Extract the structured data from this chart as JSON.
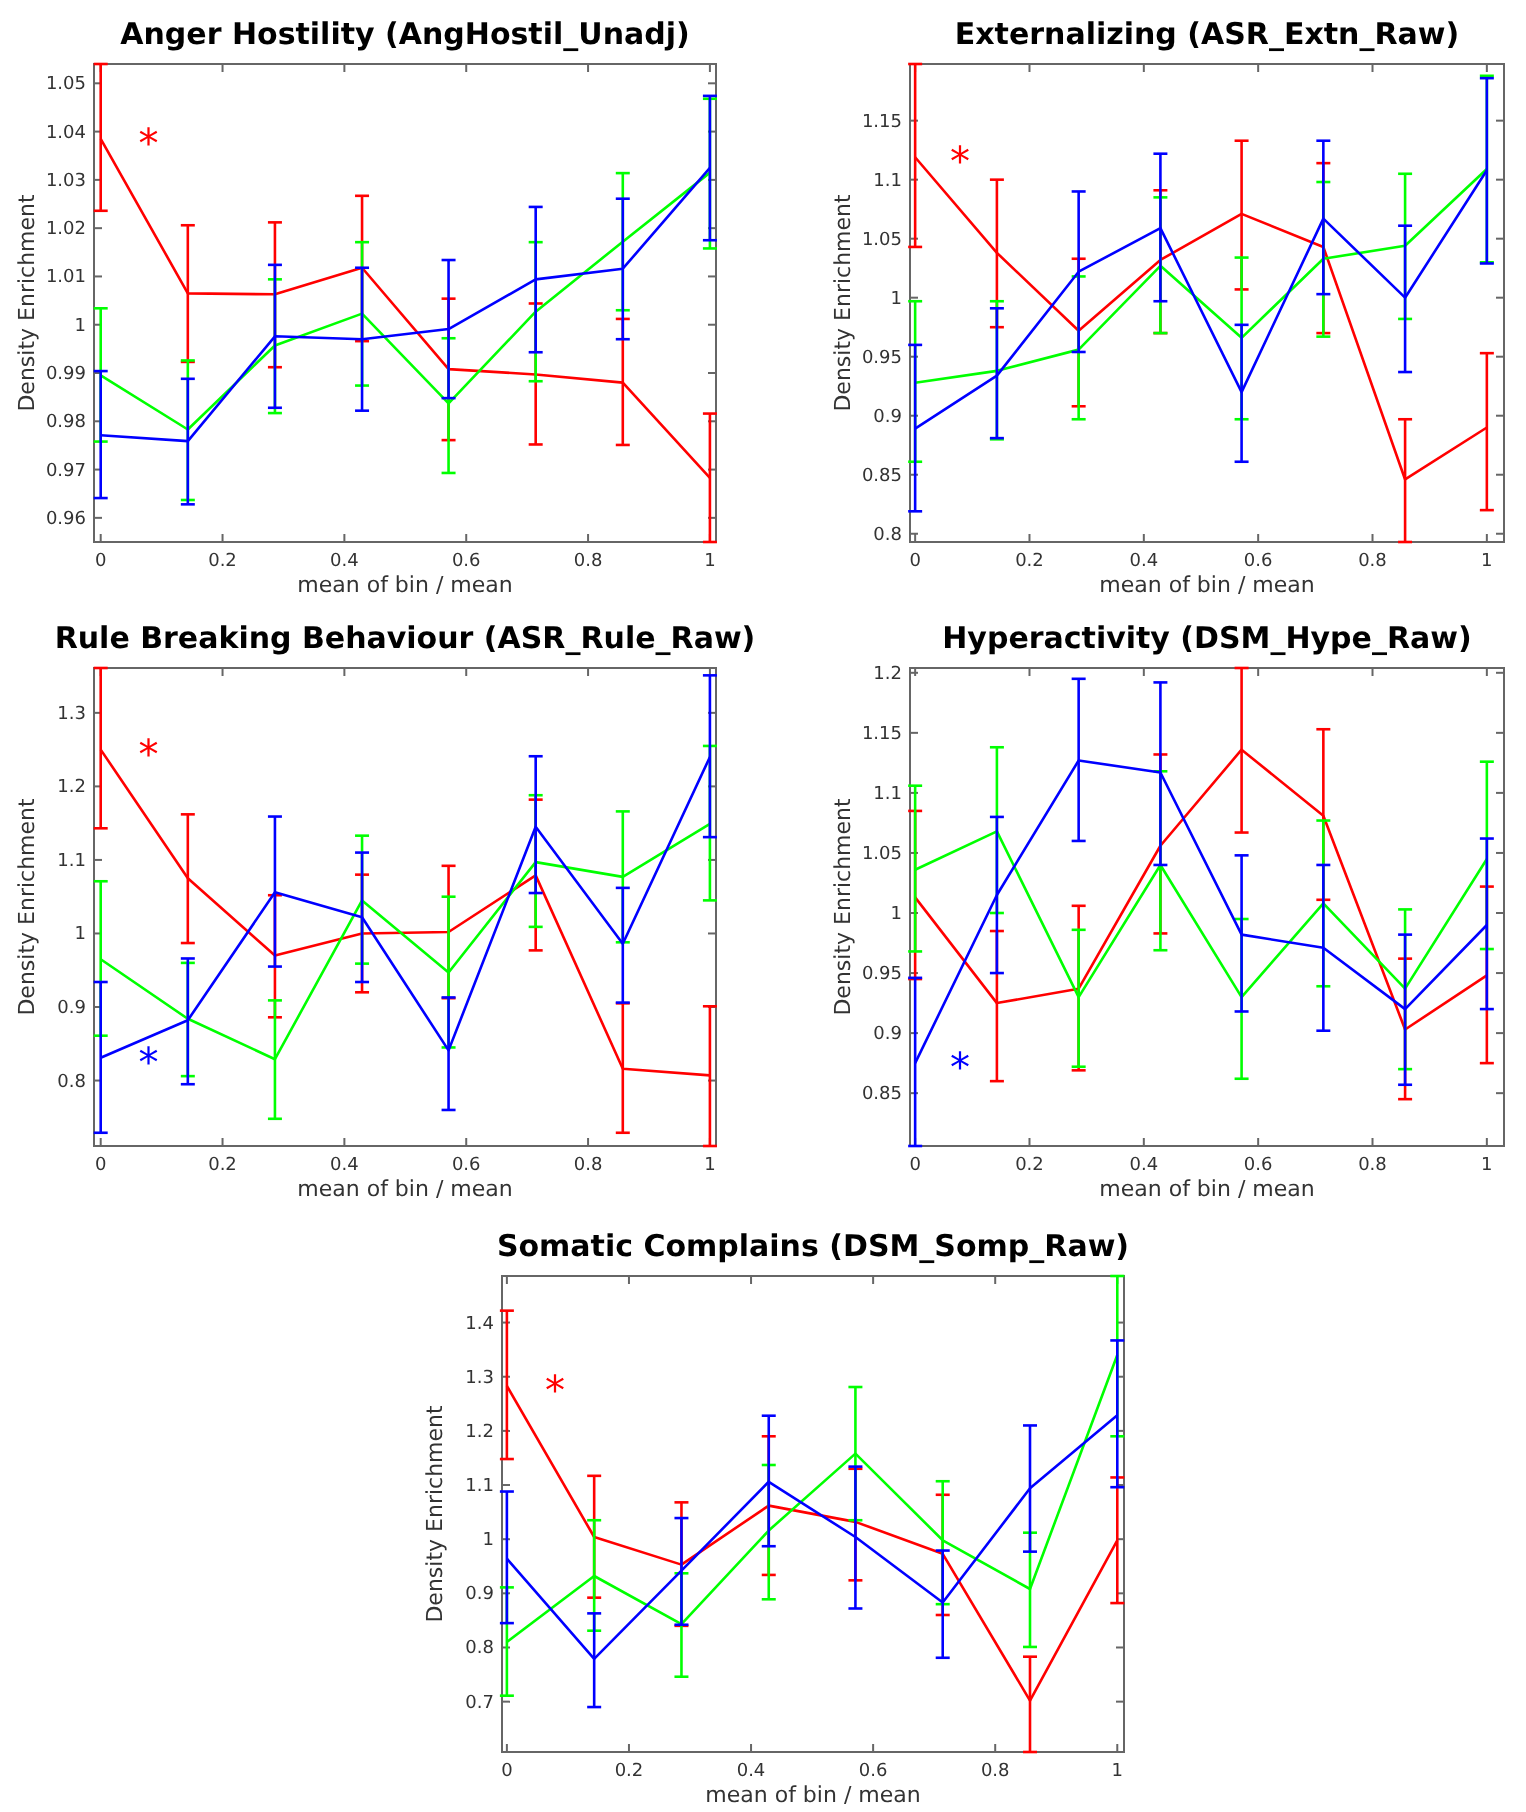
{
  "chart_data": [
    {
      "type": "line",
      "title": "Anger Hostility (AngHostil_Unadj)",
      "xlabel": "mean of bin / mean",
      "ylabel": "Density Enrichment",
      "x": [
        0,
        0.143,
        0.286,
        0.429,
        0.571,
        0.714,
        0.857,
        1
      ],
      "xlim": [
        -0.011,
        1.01
      ],
      "xticks": [
        0,
        0.2,
        0.4,
        0.6,
        0.8,
        1
      ],
      "ylim": [
        0.955,
        1.054
      ],
      "yticks": [
        0.96,
        0.97,
        0.98,
        0.99,
        1,
        1.01,
        1.02,
        1.03,
        1.04,
        1.05
      ],
      "annotations": [
        "*"
      ],
      "series": [
        {
          "color": "#ff0000",
          "values": [
            1.0385,
            1.0065,
            1.0063,
            1.0118,
            0.9908,
            0.9897,
            0.988,
            0.9683
          ],
          "errors": [
            [
              1.0236,
              1.054
            ],
            [
              0.9923,
              1.0206
            ],
            [
              0.9912,
              1.0212
            ],
            [
              0.9966,
              1.0267
            ],
            [
              0.9761,
              1.0054
            ],
            [
              0.9752,
              1.0044
            ],
            [
              0.9751,
              1.0012
            ],
            [
              0.955,
              0.9816
            ]
          ]
        },
        {
          "color": "#00ff00",
          "values": [
            0.9895,
            0.9783,
            0.9957,
            1.0023,
            0.9837,
            1.0027,
            1.0172,
            1.0315
          ],
          "errors": [
            [
              0.9758,
              1.0034
            ],
            [
              0.9637,
              0.9926
            ],
            [
              0.9817,
              1.0094
            ],
            [
              0.9874,
              1.0171
            ],
            [
              0.9693,
              0.9972
            ],
            [
              0.9883,
              1.0171
            ],
            [
              1.003,
              1.0314
            ],
            [
              1.0158,
              1.0468
            ]
          ]
        },
        {
          "color": "#0000ff",
          "values": [
            0.9771,
            0.9759,
            0.9976,
            0.997,
            0.9991,
            1.0094,
            1.0116,
            1.0325
          ],
          "errors": [
            [
              0.9641,
              0.9904
            ],
            [
              0.9628,
              0.9888
            ],
            [
              0.9828,
              1.0124
            ],
            [
              0.9822,
              1.0118
            ],
            [
              0.9848,
              1.0134
            ],
            [
              0.9943,
              1.0244
            ],
            [
              0.997,
              1.0261
            ],
            [
              1.0175,
              1.0474
            ]
          ]
        }
      ]
    },
    {
      "type": "line",
      "title": "Externalizing (ASR_Extn_Raw)",
      "xlabel": "mean of bin / mean",
      "ylabel": "Density Enrichment",
      "x": [
        0,
        0.143,
        0.286,
        0.429,
        0.571,
        0.714,
        0.857,
        1
      ],
      "xlim": [
        -0.009,
        1.03
      ],
      "xticks": [
        0,
        0.2,
        0.4,
        0.6,
        0.8,
        1
      ],
      "ylim": [
        0.793,
        1.198
      ],
      "yticks": [
        0.8,
        0.85,
        0.9,
        0.95,
        1,
        1.05,
        1.1,
        1.15
      ],
      "annotations": [
        "*"
      ],
      "series": [
        {
          "color": "#ff0000",
          "values": [
            1.119,
            1.038,
            0.972,
            1.032,
            1.071,
            1.043,
            0.846,
            0.89
          ],
          "errors": [
            [
              1.043,
              1.198
            ],
            [
              0.975,
              1.1
            ],
            [
              0.908,
              1.033
            ],
            [
              0.97,
              1.091
            ],
            [
              1.007,
              1.133
            ],
            [
              0.97,
              1.114
            ],
            [
              0.793,
              0.897
            ],
            [
              0.82,
              0.953
            ]
          ]
        },
        {
          "color": "#00ff00",
          "values": [
            0.928,
            0.938,
            0.956,
            1.027,
            0.966,
            1.033,
            1.044,
            1.109
          ],
          "errors": [
            [
              0.861,
              0.997
            ],
            [
              0.88,
              0.997
            ],
            [
              0.897,
              1.018
            ],
            [
              0.97,
              1.085
            ],
            [
              0.897,
              1.034
            ],
            [
              0.967,
              1.098
            ],
            [
              0.982,
              1.105
            ],
            [
              1.03,
              1.188
            ]
          ]
        },
        {
          "color": "#0000ff",
          "values": [
            0.889,
            0.934,
            1.022,
            1.059,
            0.92,
            1.067,
            1.0,
            1.108
          ],
          "errors": [
            [
              0.819,
              0.96
            ],
            [
              0.881,
              0.991
            ],
            [
              0.954,
              1.09
            ],
            [
              0.997,
              1.122
            ],
            [
              0.861,
              0.977
            ],
            [
              1.003,
              1.133
            ],
            [
              0.937,
              1.061
            ],
            [
              1.029,
              1.186
            ]
          ]
        }
      ]
    },
    {
      "type": "line",
      "title": "Rule Breaking Behaviour (ASR_Rule_Raw)",
      "xlabel": "mean of bin / mean",
      "ylabel": "Density Enrichment",
      "x": [
        0,
        0.143,
        0.286,
        0.429,
        0.571,
        0.714,
        0.857,
        1
      ],
      "xlim": [
        -0.011,
        1.01
      ],
      "xticks": [
        0,
        0.2,
        0.4,
        0.6,
        0.8,
        1
      ],
      "ylim": [
        0.711,
        1.361
      ],
      "yticks": [
        0.8,
        0.9,
        1,
        1.1,
        1.2,
        1.3
      ],
      "annotations": [
        "*",
        "*"
      ],
      "series": [
        {
          "color": "#ff0000",
          "values": [
            1.25,
            1.075,
            0.97,
            1.0,
            1.002,
            1.079,
            0.816,
            0.807
          ],
          "errors": [
            [
              1.143,
              1.361
            ],
            [
              0.987,
              1.162
            ],
            [
              0.886,
              1.052
            ],
            [
              0.92,
              1.08
            ],
            [
              0.912,
              1.092
            ],
            [
              0.977,
              1.182
            ],
            [
              0.729,
              0.905
            ],
            [
              0.711,
              0.901
            ]
          ]
        },
        {
          "color": "#00ff00",
          "values": [
            0.965,
            0.884,
            0.829,
            1.045,
            0.947,
            1.097,
            1.077,
            1.149
          ],
          "errors": [
            [
              0.861,
              1.071
            ],
            [
              0.806,
              0.96
            ],
            [
              0.748,
              0.909
            ],
            [
              0.959,
              1.133
            ],
            [
              0.845,
              1.05
            ],
            [
              1.009,
              1.188
            ],
            [
              0.988,
              1.166
            ],
            [
              1.045,
              1.255
            ]
          ]
        },
        {
          "color": "#0000ff",
          "values": [
            0.831,
            0.882,
            1.056,
            1.022,
            0.841,
            1.145,
            0.986,
            1.24
          ],
          "errors": [
            [
              0.729,
              0.934
            ],
            [
              0.795,
              0.966
            ],
            [
              0.955,
              1.159
            ],
            [
              0.934,
              1.11
            ],
            [
              0.76,
              0.913
            ],
            [
              1.055,
              1.241
            ],
            [
              0.906,
              1.062
            ],
            [
              1.131,
              1.351
            ]
          ]
        }
      ]
    },
    {
      "type": "line",
      "title": "Hyperactivity (DSM_Hype_Raw)",
      "xlabel": "mean of bin / mean",
      "ylabel": "Density Enrichment",
      "x": [
        0,
        0.143,
        0.286,
        0.429,
        0.571,
        0.714,
        0.857,
        1
      ],
      "xlim": [
        -0.009,
        1.03
      ],
      "xticks": [
        0,
        0.2,
        0.4,
        0.6,
        0.8,
        1
      ],
      "ylim": [
        0.806,
        1.204
      ],
      "yticks": [
        0.85,
        0.9,
        0.95,
        1,
        1.05,
        1.1,
        1.15,
        1.2
      ],
      "annotations": [
        "*"
      ],
      "series": [
        {
          "color": "#ff0000",
          "values": [
            1.013,
            0.925,
            0.937,
            1.056,
            1.136,
            1.081,
            0.903,
            0.948
          ],
          "errors": [
            [
              0.945,
              1.085
            ],
            [
              0.86,
              0.985
            ],
            [
              0.869,
              1.006
            ],
            [
              0.983,
              1.132
            ],
            [
              1.067,
              1.204
            ],
            [
              1.011,
              1.153
            ],
            [
              0.845,
              0.962
            ],
            [
              0.875,
              1.022
            ]
          ]
        },
        {
          "color": "#00ff00",
          "values": [
            1.036,
            1.068,
            0.93,
            1.04,
            0.93,
            1.008,
            0.937,
            1.045
          ],
          "errors": [
            [
              0.968,
              1.106
            ],
            [
              1.0,
              1.138
            ],
            [
              0.872,
              0.986
            ],
            [
              0.969,
              1.118
            ],
            [
              0.862,
              0.995
            ],
            [
              0.939,
              1.077
            ],
            [
              0.87,
              1.003
            ],
            [
              0.97,
              1.126
            ]
          ]
        },
        {
          "color": "#0000ff",
          "values": [
            0.875,
            1.015,
            1.127,
            1.117,
            0.982,
            0.971,
            0.92,
            0.99
          ],
          "errors": [
            [
              0.806,
              0.946
            ],
            [
              0.95,
              1.08
            ],
            [
              1.06,
              1.195
            ],
            [
              1.04,
              1.192
            ],
            [
              0.918,
              1.048
            ],
            [
              0.902,
              1.04
            ],
            [
              0.857,
              0.982
            ],
            [
              0.92,
              1.062
            ]
          ]
        }
      ]
    },
    {
      "type": "line",
      "title": "Somatic Complains (DSM_Somp_Raw)",
      "xlabel": "mean of bin / mean",
      "ylabel": "Density Enrichment",
      "x": [
        0,
        0.143,
        0.286,
        0.429,
        0.571,
        0.714,
        0.857,
        1
      ],
      "xlim": [
        -0.008,
        1.011
      ],
      "xticks": [
        0,
        0.2,
        0.4,
        0.6,
        0.8,
        1
      ],
      "ylim": [
        0.607,
        1.486
      ],
      "yticks": [
        0.7,
        0.8,
        0.9,
        1,
        1.1,
        1.2,
        1.3,
        1.4
      ],
      "annotations": [
        "*"
      ],
      "series": [
        {
          "color": "#ff0000",
          "values": [
            1.283,
            1.004,
            0.953,
            1.062,
            1.032,
            0.973,
            0.702,
            0.998
          ],
          "errors": [
            [
              1.148,
              1.422
            ],
            [
              0.892,
              1.117
            ],
            [
              0.84,
              1.068
            ],
            [
              0.934,
              1.19
            ],
            [
              0.924,
              1.13
            ],
            [
              0.86,
              1.082
            ],
            [
              0.607,
              0.783
            ],
            [
              0.882,
              1.114
            ]
          ]
        },
        {
          "color": "#00ff00",
          "values": [
            0.81,
            0.932,
            0.843,
            1.016,
            1.158,
            0.998,
            0.908,
            1.34
          ],
          "errors": [
            [
              0.711,
              0.911
            ],
            [
              0.831,
              1.035
            ],
            [
              0.746,
              0.937
            ],
            [
              0.889,
              1.137
            ],
            [
              1.035,
              1.281
            ],
            [
              0.88,
              1.107
            ],
            [
              0.801,
              1.012
            ],
            [
              1.19,
              1.486
            ]
          ]
        },
        {
          "color": "#0000ff",
          "values": [
            0.964,
            0.779,
            0.942,
            1.106,
            1.004,
            0.883,
            1.094,
            1.229
          ],
          "errors": [
            [
              0.845,
              1.088
            ],
            [
              0.69,
              0.863
            ],
            [
              0.842,
              1.039
            ],
            [
              0.987,
              1.228
            ],
            [
              0.872,
              1.134
            ],
            [
              0.781,
              0.979
            ],
            [
              0.977,
              1.21
            ],
            [
              1.096,
              1.367
            ]
          ]
        }
      ]
    }
  ]
}
